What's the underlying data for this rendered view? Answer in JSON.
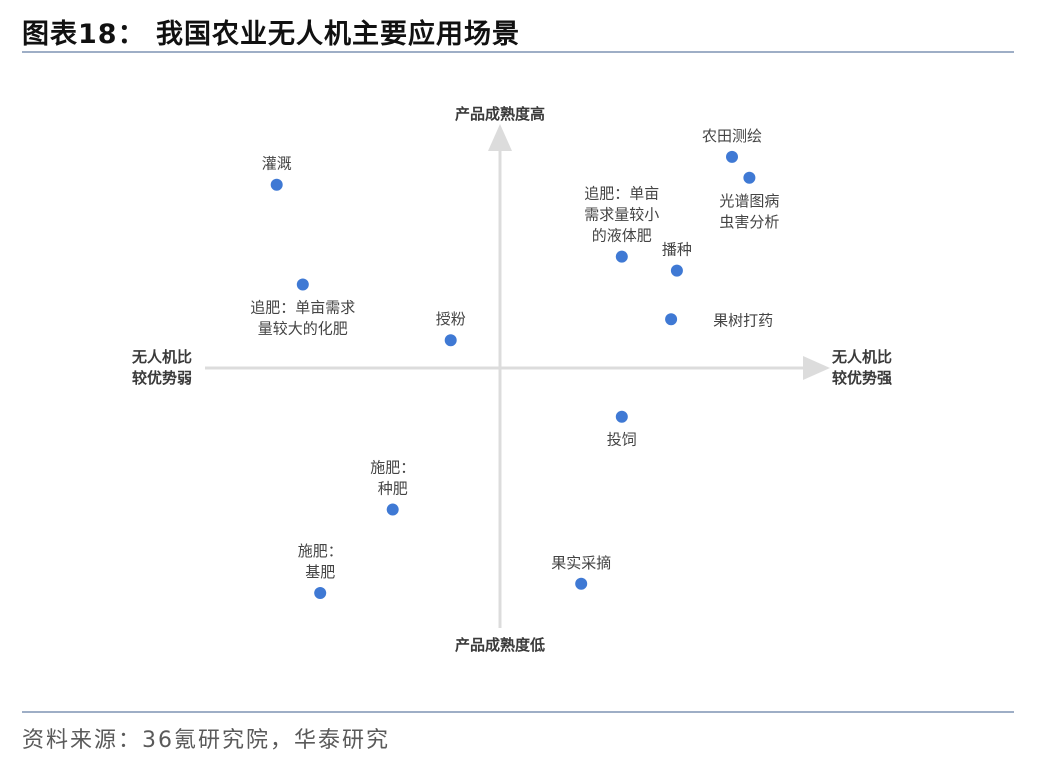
{
  "figure": {
    "title": "图表18：  我国农业无人机主要应用场景",
    "source": "资料来源：36氪研究院，华泰研究"
  },
  "chart_data": {
    "type": "scatter",
    "axes": {
      "y_top": "产品成熟度高",
      "y_bottom": "产品成熟度低",
      "x_left": [
        "无人机比",
        "较优势弱"
      ],
      "x_right": [
        "无人机比",
        "较优势强"
      ]
    },
    "points": [
      {
        "label": [
          "灌溉"
        ],
        "x": -0.77,
        "y": 0.79,
        "label_pos": "above"
      },
      {
        "label": [
          "追肥：单亩需求",
          "量较大的化肥"
        ],
        "x": -0.68,
        "y": 0.36,
        "label_pos": "below"
      },
      {
        "label": [
          "授粉"
        ],
        "x": -0.17,
        "y": 0.12,
        "label_pos": "above"
      },
      {
        "label": [
          "农田测绘"
        ],
        "x": 0.8,
        "y": 0.91,
        "label_pos": "above"
      },
      {
        "label": [
          "光谱图病",
          "虫害分析"
        ],
        "x": 0.86,
        "y": 0.82,
        "label_pos": "below"
      },
      {
        "label": [
          "追肥：单亩",
          "需求量较小",
          "的液体肥"
        ],
        "x": 0.42,
        "y": 0.48,
        "label_pos": "above"
      },
      {
        "label": [
          "播种"
        ],
        "x": 0.61,
        "y": 0.42,
        "label_pos": "above"
      },
      {
        "label": [
          "果树打药"
        ],
        "x": 0.59,
        "y": 0.21,
        "label_pos": "right"
      },
      {
        "label": [
          "投饲"
        ],
        "x": 0.42,
        "y": -0.21,
        "label_pos": "below"
      },
      {
        "label": [
          "施肥：",
          "种肥"
        ],
        "x": -0.37,
        "y": -0.61,
        "label_pos": "above"
      },
      {
        "label": [
          "施肥：",
          "基肥"
        ],
        "x": -0.62,
        "y": -0.97,
        "label_pos": "above"
      },
      {
        "label": [
          "果实采摘"
        ],
        "x": 0.28,
        "y": -0.93,
        "label_pos": "above"
      }
    ],
    "xlim": [
      -1,
      1
    ],
    "ylim": [
      -1,
      1
    ],
    "grid": false,
    "colors": {
      "point": "#3f79d4",
      "axis": "#dcdcdc"
    }
  }
}
